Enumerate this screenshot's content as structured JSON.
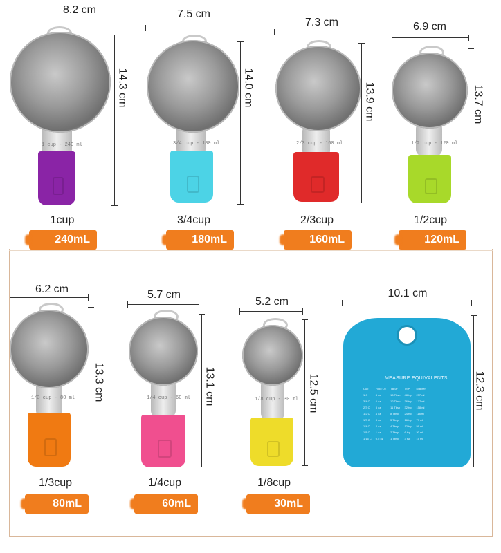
{
  "items": [
    {
      "width": "8.2 cm",
      "height": "14.3 cm",
      "cup": "1cup",
      "ml": "240mL",
      "stem_text": "1 cup - 240 ml",
      "grip_color": "#8a24a6"
    },
    {
      "width": "7.5 cm",
      "height": "14.0 cm",
      "cup": "3/4cup",
      "ml": "180mL",
      "stem_text": "3/4 cup - 180 ml",
      "grip_color": "#4cd3e6"
    },
    {
      "width": "7.3 cm",
      "height": "13.9 cm",
      "cup": "2/3cup",
      "ml": "160mL",
      "stem_text": "2/3 cup - 160 ml",
      "grip_color": "#e02a2a"
    },
    {
      "width": "6.9 cm",
      "height": "13.7 cm",
      "cup": "1/2cup",
      "ml": "120mL",
      "stem_text": "1/2 cup - 120 ml",
      "grip_color": "#a8d92a"
    },
    {
      "width": "6.2 cm",
      "height": "13.3 cm",
      "cup": "1/3cup",
      "ml": "80mL",
      "stem_text": "1/3 cup - 80 ml",
      "grip_color": "#f07a12"
    },
    {
      "width": "5.7 cm",
      "height": "13.1 cm",
      "cup": "1/4cup",
      "ml": "60mL",
      "stem_text": "1/4 cup - 60 ml",
      "grip_color": "#f04f8f"
    },
    {
      "width": "5.2 cm",
      "height": "12.5 cm",
      "cup": "1/8cup",
      "ml": "30mL",
      "stem_text": "1/8 cup - 30 ml",
      "grip_color": "#eedc2a"
    }
  ],
  "card": {
    "width": "10.1 cm",
    "height": "12.3 cm",
    "title": "MEASURE EQUIVALENTS",
    "color": "#22a9d6",
    "headers": [
      "Cup",
      "Fluid OZ",
      "TBSP",
      "TSP",
      "Milliliter"
    ],
    "rows": [
      [
        "1 C",
        "8 oz",
        "16 Tbsp",
        "48 tsp",
        "237 ml"
      ],
      [
        "3/4 C",
        "6 oz",
        "12 Tbsp",
        "36 tsp",
        "177 ml"
      ],
      [
        "2/3 C",
        "5 oz",
        "11 Tbsp",
        "32 tsp",
        "158 ml"
      ],
      [
        "1/2 C",
        "4 oz",
        "8 Tbsp",
        "24 tsp",
        "118 ml"
      ],
      [
        "1/3 C",
        "3 oz",
        "5 Tbsp",
        "16 tsp",
        "79 ml"
      ],
      [
        "1/4 C",
        "2 oz",
        "4 Tbsp",
        "12 tsp",
        "59 ml"
      ],
      [
        "1/8 C",
        "1 oz",
        "2 Tbsp",
        "6 tsp",
        "30 ml"
      ],
      [
        "1/16 C",
        "0.5 oz",
        "1 Tbsp",
        "3 tsp",
        "15 ml"
      ]
    ]
  }
}
